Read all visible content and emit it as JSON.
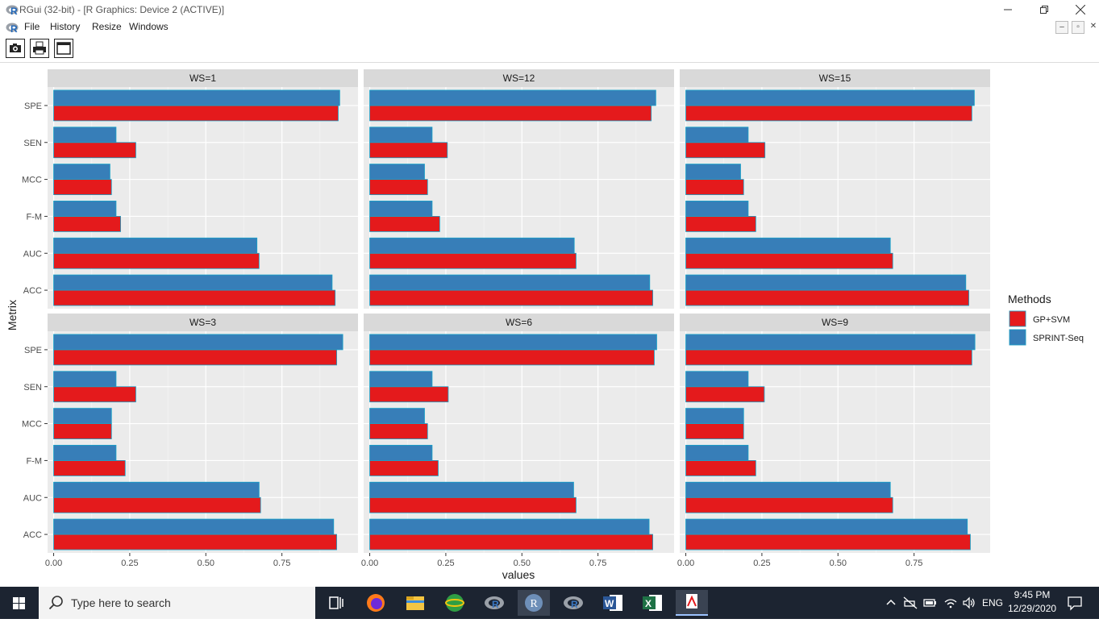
{
  "window": {
    "title": "RGui (32-bit) - [R Graphics: Device 2 (ACTIVE)]"
  },
  "menu": [
    "File",
    "History",
    "Resize",
    "Windows"
  ],
  "toolbar": {
    "buttons": [
      "camera-icon",
      "printer-icon",
      "window-icon"
    ]
  },
  "chart_data": {
    "type": "bar",
    "orientation": "horizontal",
    "categories": [
      "ACC",
      "AUC",
      "F-M",
      "MCC",
      "SEN",
      "SPE"
    ],
    "xlabel": "values",
    "ylabel": "Metrix",
    "xticks": [
      "0.00",
      "0.25",
      "0.50",
      "0.75"
    ],
    "xlim": [
      -0.02,
      1.0
    ],
    "legend": {
      "title": "Methods",
      "position": "right",
      "entries": [
        "GP+SVM",
        "SPRINT-Seq"
      ]
    },
    "colors": {
      "GP+SVM": "#e41a1c",
      "SPRINT-Seq": "#377eb8",
      "panel_bg": "#ebebeb",
      "strip_bg": "#d9d9d9"
    },
    "facets": [
      {
        "label": "WS=1",
        "series": [
          {
            "name": "GP+SVM",
            "values": [
              0.925,
              0.675,
              0.22,
              0.19,
              0.27,
              0.935
            ]
          },
          {
            "name": "SPRINT-Seq",
            "values": [
              0.915,
              0.668,
              0.205,
              0.185,
              0.205,
              0.94
            ]
          }
        ]
      },
      {
        "label": "WS=12",
        "series": [
          {
            "name": "GP+SVM",
            "values": [
              0.93,
              0.678,
              0.23,
              0.19,
              0.255,
              0.925
            ]
          },
          {
            "name": "SPRINT-Seq",
            "values": [
              0.92,
              0.672,
              0.205,
              0.18,
              0.205,
              0.94
            ]
          }
        ]
      },
      {
        "label": "WS=15",
        "series": [
          {
            "name": "GP+SVM",
            "values": [
              0.93,
              0.68,
              0.23,
              0.19,
              0.26,
              0.94
            ]
          },
          {
            "name": "SPRINT-Seq",
            "values": [
              0.92,
              0.672,
              0.205,
              0.18,
              0.205,
              0.948
            ]
          }
        ]
      },
      {
        "label": "WS=3",
        "series": [
          {
            "name": "GP+SVM",
            "values": [
              0.93,
              0.68,
              0.235,
              0.19,
              0.27,
              0.93
            ]
          },
          {
            "name": "SPRINT-Seq",
            "values": [
              0.92,
              0.675,
              0.205,
              0.19,
              0.205,
              0.95
            ]
          }
        ]
      },
      {
        "label": "WS=6",
        "series": [
          {
            "name": "GP+SVM",
            "values": [
              0.93,
              0.678,
              0.225,
              0.19,
              0.258,
              0.935
            ]
          },
          {
            "name": "SPRINT-Seq",
            "values": [
              0.918,
              0.67,
              0.205,
              0.18,
              0.205,
              0.943
            ]
          }
        ]
      },
      {
        "label": "WS=9",
        "series": [
          {
            "name": "GP+SVM",
            "values": [
              0.935,
              0.68,
              0.23,
              0.19,
              0.258,
              0.94
            ]
          },
          {
            "name": "SPRINT-Seq",
            "values": [
              0.925,
              0.672,
              0.205,
              0.19,
              0.205,
              0.95
            ]
          }
        ]
      }
    ]
  },
  "taskbar": {
    "search_placeholder": "Type here to search",
    "apps": [
      "task-view-icon",
      "firefox-icon",
      "file-explorer-icon",
      "web-globe-icon",
      "r-studio-icon",
      "r-app-icon",
      "r-studio-icon-2",
      "word-icon",
      "excel-icon",
      "r-graphics-icon"
    ],
    "language": "ENG",
    "time": "9:45 PM",
    "date": "12/29/2020"
  }
}
